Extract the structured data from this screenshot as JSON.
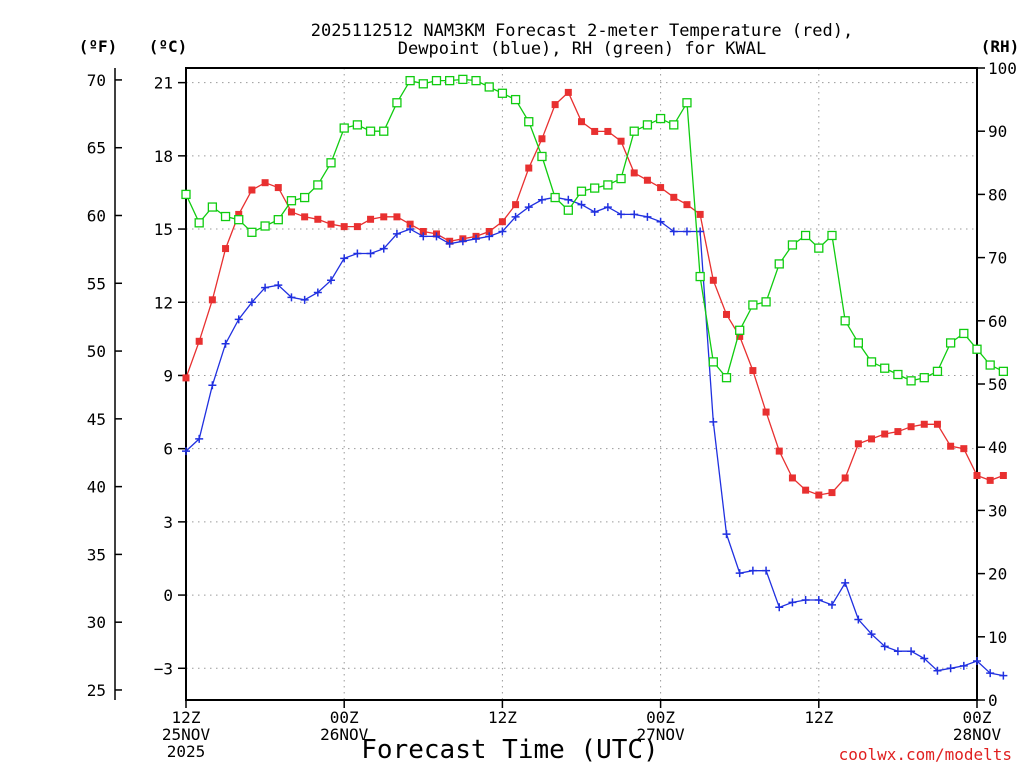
{
  "chart_data": {
    "type": "line",
    "title": "2025112512 NAM3KM Forecast 2-meter Temperature (red), Dewpoint (blue), RH (green) for KWAL",
    "title_lines": [
      "2025112512 NAM3KM Forecast 2-meter Temperature (red),",
      "Dewpoint (blue), RH (green) for KWAL"
    ],
    "xlabel": "Forecast Time (UTC)",
    "credit": "coolwx.com/modelts",
    "units": {
      "fahrenheit": "(ºF)",
      "celsius": "(ºC)",
      "rh": "(RH)"
    },
    "x_range_hours": [
      0,
      60
    ],
    "x_ticks": [
      {
        "hour": 0,
        "lines": [
          "12Z",
          "25NOV",
          "2025"
        ]
      },
      {
        "hour": 12,
        "lines": [
          "00Z",
          "26NOV"
        ]
      },
      {
        "hour": 24,
        "lines": [
          "12Z"
        ]
      },
      {
        "hour": 36,
        "lines": [
          "00Z",
          "27NOV"
        ]
      },
      {
        "hour": 48,
        "lines": [
          "12Z"
        ]
      },
      {
        "hour": 60,
        "lines": [
          "00Z",
          "28NOV"
        ]
      }
    ],
    "celsius_range": [
      -4.3,
      21.6
    ],
    "celsius_ticks": [
      -3,
      0,
      3,
      6,
      9,
      12,
      15,
      18,
      21
    ],
    "celsius_tick_labels": [
      "−3",
      "0",
      "3",
      "6",
      "9",
      "12",
      "15",
      "18",
      "21"
    ],
    "fahrenheit_ticks": [
      25,
      30,
      35,
      40,
      45,
      50,
      55,
      60,
      65,
      70
    ],
    "fahrenheit_tick_labels": [
      "25",
      "30",
      "35",
      "40",
      "45",
      "50",
      "55",
      "60",
      "65",
      "70"
    ],
    "rh_range": [
      0,
      100
    ],
    "rh_ticks": [
      0,
      10,
      20,
      30,
      40,
      50,
      60,
      70,
      80,
      90,
      100
    ],
    "rh_tick_labels": [
      "0",
      "10",
      "20",
      "30",
      "40",
      "50",
      "60",
      "70",
      "80",
      "90",
      "100"
    ],
    "grid": true,
    "series": [
      {
        "name": "Temperature",
        "units": "C",
        "color": "#e83030",
        "marker": "filled-square",
        "points": [
          [
            0,
            8.9
          ],
          [
            1,
            10.4
          ],
          [
            2,
            12.1
          ],
          [
            3,
            14.2
          ],
          [
            4,
            15.6
          ],
          [
            5,
            16.6
          ],
          [
            6,
            16.9
          ],
          [
            7,
            16.7
          ],
          [
            8,
            15.7
          ],
          [
            9,
            15.5
          ],
          [
            10,
            15.4
          ],
          [
            11,
            15.2
          ],
          [
            12,
            15.1
          ],
          [
            13,
            15.1
          ],
          [
            14,
            15.4
          ],
          [
            15,
            15.5
          ],
          [
            16,
            15.5
          ],
          [
            17,
            15.2
          ],
          [
            18,
            14.9
          ],
          [
            19,
            14.8
          ],
          [
            20,
            14.5
          ],
          [
            21,
            14.6
          ],
          [
            22,
            14.7
          ],
          [
            23,
            14.9
          ],
          [
            24,
            15.3
          ],
          [
            25,
            16.0
          ],
          [
            26,
            17.5
          ],
          [
            27,
            18.7
          ],
          [
            28,
            20.1
          ],
          [
            29,
            20.6
          ],
          [
            30,
            19.4
          ],
          [
            31,
            19.0
          ],
          [
            32,
            19.0
          ],
          [
            33,
            18.6
          ],
          [
            34,
            17.3
          ],
          [
            35,
            17.0
          ],
          [
            36,
            16.7
          ],
          [
            37,
            16.3
          ],
          [
            38,
            16.0
          ],
          [
            39,
            15.6
          ],
          [
            40,
            12.9
          ],
          [
            41,
            11.5
          ],
          [
            42,
            10.6
          ],
          [
            43,
            9.2
          ],
          [
            44,
            7.5
          ],
          [
            45,
            5.9
          ],
          [
            46,
            4.8
          ],
          [
            47,
            4.3
          ],
          [
            48,
            4.1
          ],
          [
            49,
            4.2
          ],
          [
            50,
            4.8
          ],
          [
            51,
            6.2
          ],
          [
            52,
            6.4
          ],
          [
            53,
            6.6
          ],
          [
            54,
            6.7
          ],
          [
            55,
            6.9
          ],
          [
            56,
            7.0
          ],
          [
            57,
            7.0
          ],
          [
            58,
            6.1
          ],
          [
            59,
            6.0
          ],
          [
            60,
            4.9
          ],
          [
            61,
            4.7
          ],
          [
            62,
            4.9
          ]
        ]
      },
      {
        "name": "Dewpoint",
        "units": "C",
        "color": "#2030e0",
        "marker": "plus",
        "points": [
          [
            0,
            5.9
          ],
          [
            1,
            6.4
          ],
          [
            2,
            8.6
          ],
          [
            3,
            10.3
          ],
          [
            4,
            11.3
          ],
          [
            5,
            12.0
          ],
          [
            6,
            12.6
          ],
          [
            7,
            12.7
          ],
          [
            8,
            12.2
          ],
          [
            9,
            12.1
          ],
          [
            10,
            12.4
          ],
          [
            11,
            12.9
          ],
          [
            12,
            13.8
          ],
          [
            13,
            14.0
          ],
          [
            14,
            14.0
          ],
          [
            15,
            14.2
          ],
          [
            16,
            14.8
          ],
          [
            17,
            15.0
          ],
          [
            18,
            14.7
          ],
          [
            19,
            14.7
          ],
          [
            20,
            14.4
          ],
          [
            21,
            14.5
          ],
          [
            22,
            14.6
          ],
          [
            23,
            14.7
          ],
          [
            24,
            14.9
          ],
          [
            25,
            15.5
          ],
          [
            26,
            15.9
          ],
          [
            27,
            16.2
          ],
          [
            28,
            16.3
          ],
          [
            29,
            16.2
          ],
          [
            30,
            16.0
          ],
          [
            31,
            15.7
          ],
          [
            32,
            15.9
          ],
          [
            33,
            15.6
          ],
          [
            34,
            15.6
          ],
          [
            35,
            15.5
          ],
          [
            36,
            15.3
          ],
          [
            37,
            14.9
          ],
          [
            38,
            14.9
          ],
          [
            39,
            14.9
          ],
          [
            40,
            7.1
          ],
          [
            41,
            2.5
          ],
          [
            42,
            0.9
          ],
          [
            43,
            1.0
          ],
          [
            44,
            1.0
          ],
          [
            45,
            -0.5
          ],
          [
            46,
            -0.3
          ],
          [
            47,
            -0.2
          ],
          [
            48,
            -0.2
          ],
          [
            49,
            -0.4
          ],
          [
            50,
            0.5
          ],
          [
            51,
            -1.0
          ],
          [
            52,
            -1.6
          ],
          [
            53,
            -2.1
          ],
          [
            54,
            -2.3
          ],
          [
            55,
            -2.3
          ],
          [
            56,
            -2.6
          ],
          [
            57,
            -3.1
          ],
          [
            58,
            -3.0
          ],
          [
            59,
            -2.9
          ],
          [
            60,
            -2.7
          ],
          [
            61,
            -3.2
          ],
          [
            62,
            -3.3
          ]
        ]
      },
      {
        "name": "RH",
        "units": "%",
        "color": "#10cc10",
        "marker": "open-square",
        "points": [
          [
            0,
            80
          ],
          [
            1,
            75.5
          ],
          [
            2,
            78
          ],
          [
            3,
            76.5
          ],
          [
            4,
            76
          ],
          [
            5,
            74
          ],
          [
            6,
            75
          ],
          [
            7,
            76
          ],
          [
            8,
            79
          ],
          [
            9,
            79.5
          ],
          [
            10,
            81.5
          ],
          [
            11,
            85
          ],
          [
            12,
            90.5
          ],
          [
            13,
            91
          ],
          [
            14,
            90
          ],
          [
            15,
            90
          ],
          [
            16,
            94.5
          ],
          [
            17,
            98
          ],
          [
            18,
            97.5
          ],
          [
            19,
            98
          ],
          [
            20,
            98
          ],
          [
            21,
            98.2
          ],
          [
            22,
            98
          ],
          [
            23,
            97
          ],
          [
            24,
            96
          ],
          [
            25,
            95
          ],
          [
            26,
            91.5
          ],
          [
            27,
            86
          ],
          [
            28,
            79.5
          ],
          [
            29,
            77.5
          ],
          [
            30,
            80.5
          ],
          [
            31,
            81
          ],
          [
            32,
            81.5
          ],
          [
            33,
            82.5
          ],
          [
            34,
            90
          ],
          [
            35,
            91
          ],
          [
            36,
            92
          ],
          [
            37,
            91
          ],
          [
            38,
            94.5
          ],
          [
            39,
            67
          ],
          [
            40,
            53.5
          ],
          [
            41,
            51
          ],
          [
            42,
            58.5
          ],
          [
            43,
            62.5
          ],
          [
            44,
            63
          ],
          [
            45,
            69
          ],
          [
            46,
            72
          ],
          [
            47,
            73.5
          ],
          [
            48,
            71.5
          ],
          [
            49,
            73.5
          ],
          [
            50,
            60
          ],
          [
            51,
            56.5
          ],
          [
            52,
            53.5
          ],
          [
            53,
            52.5
          ],
          [
            54,
            51.5
          ],
          [
            55,
            50.5
          ],
          [
            56,
            51
          ],
          [
            57,
            52
          ],
          [
            58,
            56.5
          ],
          [
            59,
            58
          ],
          [
            60,
            55.5
          ],
          [
            61,
            53
          ],
          [
            62,
            52
          ]
        ]
      }
    ]
  }
}
